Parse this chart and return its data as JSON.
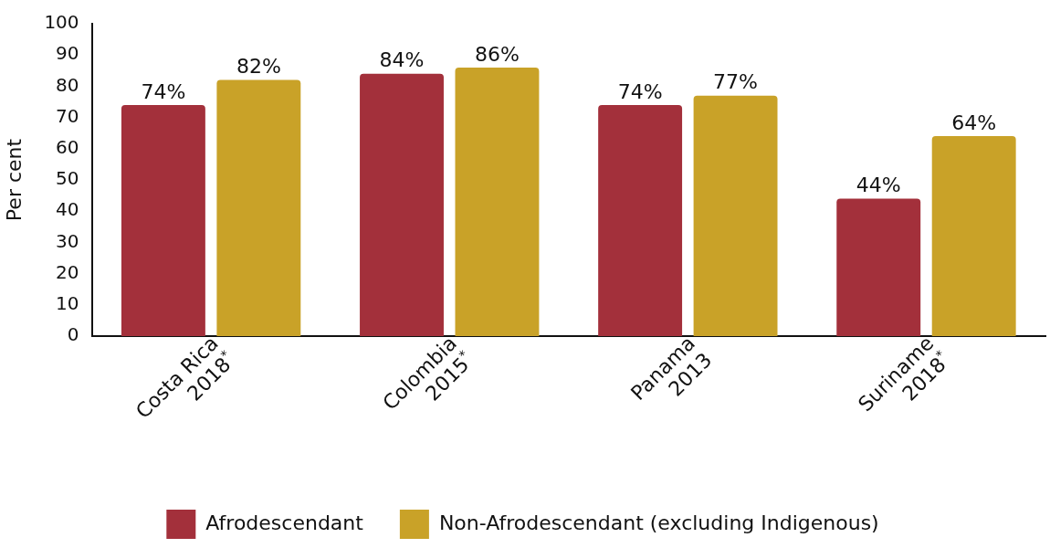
{
  "chart_data": {
    "type": "bar",
    "ylabel": "Per cent",
    "categories": [
      "Costa Rica 2018$^{*}$",
      "Colombia 2015$^{*}$",
      "Panama 2013",
      "Suriname 2018$^{*}$"
    ],
    "series": [
      {
        "name": "Afrodescendant",
        "color": "#a3303b",
        "values": [
          74,
          84,
          74,
          44
        ],
        "value_labels": [
          "74%",
          "84%",
          "74%",
          "44%"
        ]
      },
      {
        "name": "Non-Afrodescendant (excluding Indigenous)",
        "color": "#c9a228",
        "values": [
          82,
          86,
          77,
          64
        ],
        "value_labels": [
          "82%",
          "86%",
          "77%",
          "64%"
        ]
      }
    ],
    "ylim": [
      0,
      100
    ],
    "yticks": [
      0,
      10,
      20,
      30,
      40,
      50,
      60,
      70,
      80,
      90,
      100
    ],
    "grid": false,
    "legend": "bottom"
  }
}
